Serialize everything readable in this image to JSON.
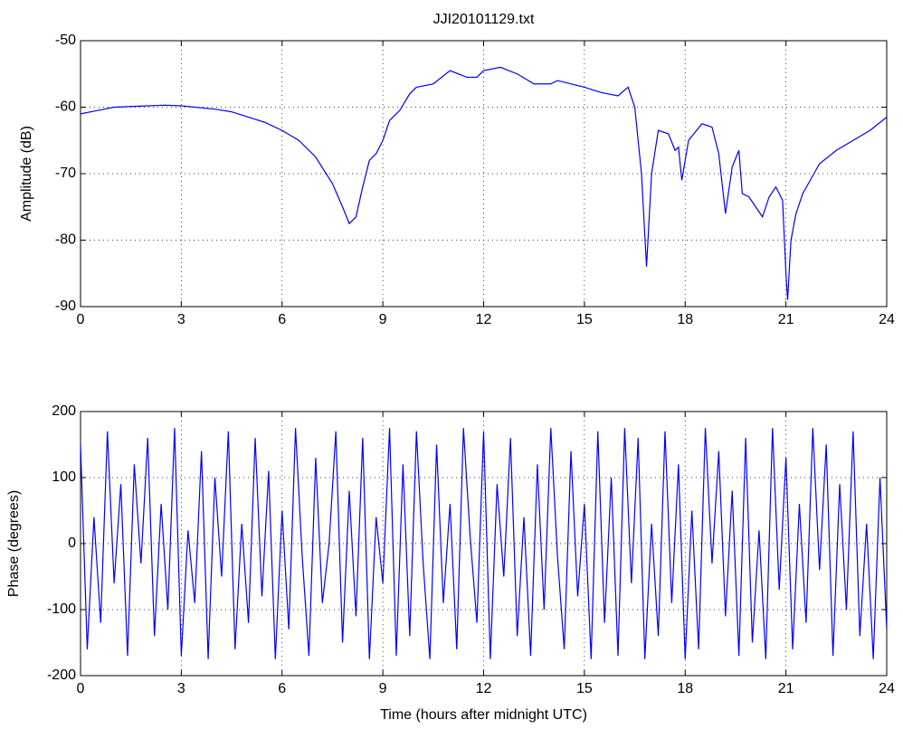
{
  "chart_data": [
    {
      "type": "line",
      "title": "JJI20101129.txt",
      "y_label": "Amplitude (dB)",
      "grid": true,
      "xlim": [
        0,
        24
      ],
      "xticks": [
        0,
        3,
        6,
        9,
        12,
        15,
        18,
        21,
        24
      ],
      "ylim": [
        -90,
        -50
      ],
      "yticks": [
        -90,
        -80,
        -70,
        -60,
        -50
      ],
      "series": [
        {
          "color": "#0000ff",
          "x": [
            0,
            0.5,
            1,
            2,
            2.5,
            3,
            4,
            4.5,
            5,
            5.5,
            6,
            6.5,
            7,
            7.5,
            7.8,
            8,
            8.2,
            8.4,
            8.6,
            8.8,
            9,
            9.2,
            9.5,
            9.8,
            10,
            10.5,
            11,
            11.5,
            11.8,
            12,
            12.5,
            13,
            13.5,
            14,
            14.2,
            15,
            15.5,
            16,
            16.3,
            16.5,
            16.7,
            16.85,
            17,
            17.2,
            17.5,
            17.7,
            17.8,
            17.9,
            18.1,
            18.5,
            18.8,
            19,
            19.2,
            19.4,
            19.6,
            19.7,
            19.9,
            20.1,
            20.3,
            20.5,
            20.7,
            20.9,
            21,
            21.05,
            21.15,
            21.3,
            21.5,
            22,
            22.5,
            23,
            23.5,
            24
          ],
          "values": [
            -61,
            -60.5,
            -60,
            -59.8,
            -59.7,
            -59.8,
            -60.3,
            -60.7,
            -61.5,
            -62.3,
            -63.5,
            -65,
            -67.5,
            -71.5,
            -75,
            -77.5,
            -76.5,
            -72,
            -68,
            -67,
            -65,
            -62,
            -60.5,
            -58,
            -57,
            -56.5,
            -54.5,
            -55.5,
            -55.5,
            -54.5,
            -54,
            -55,
            -56.5,
            -56.5,
            -56,
            -57,
            -57.8,
            -58.3,
            -57,
            -60,
            -70,
            -84,
            -70,
            -63.5,
            -64,
            -66.5,
            -66,
            -71,
            -65,
            -62.5,
            -63,
            -67,
            -76,
            -69,
            -66.5,
            -73,
            -73.5,
            -75,
            -76.5,
            -73.5,
            -72,
            -74,
            -85,
            -89,
            -80,
            -76,
            -73,
            -68.5,
            -66.5,
            -65,
            -63.5,
            -61.5
          ]
        }
      ]
    },
    {
      "type": "line",
      "x_label": "Time (hours after midnight UTC)",
      "y_label": "Phase (degrees)",
      "grid": true,
      "xlim": [
        0,
        24
      ],
      "xticks": [
        0,
        3,
        6,
        9,
        12,
        15,
        18,
        21,
        24
      ],
      "ylim": [
        -200,
        200
      ],
      "yticks": [
        -200,
        -100,
        0,
        100,
        200
      ],
      "series": [
        {
          "color": "#0000ff",
          "x": [
            0,
            0.2,
            0.4,
            0.6,
            0.8,
            1,
            1.2,
            1.4,
            1.6,
            1.8,
            2,
            2.2,
            2.4,
            2.6,
            2.8,
            3,
            3.2,
            3.4,
            3.6,
            3.8,
            4,
            4.2,
            4.4,
            4.6,
            4.8,
            5,
            5.2,
            5.4,
            5.6,
            5.8,
            6,
            6.2,
            6.4,
            6.6,
            6.8,
            7,
            7.2,
            7.4,
            7.6,
            7.8,
            8,
            8.2,
            8.4,
            8.6,
            8.8,
            9,
            9.2,
            9.4,
            9.6,
            9.8,
            10,
            10.2,
            10.4,
            10.6,
            10.8,
            11,
            11.2,
            11.4,
            11.6,
            11.8,
            12,
            12.2,
            12.4,
            12.6,
            12.8,
            13,
            13.2,
            13.4,
            13.6,
            13.8,
            14,
            14.2,
            14.4,
            14.6,
            14.8,
            15,
            15.2,
            15.4,
            15.6,
            15.8,
            16,
            16.2,
            16.4,
            16.6,
            16.8,
            17,
            17.2,
            17.4,
            17.6,
            17.8,
            18,
            18.2,
            18.4,
            18.6,
            18.8,
            19,
            19.2,
            19.4,
            19.6,
            19.8,
            20,
            20.2,
            20.4,
            20.6,
            20.8,
            21,
            21.2,
            21.4,
            21.6,
            21.8,
            22,
            22.2,
            22.4,
            22.6,
            22.8,
            23,
            23.2,
            23.4,
            23.6,
            23.8,
            24
          ],
          "values": [
            150,
            -160,
            40,
            -120,
            170,
            -60,
            90,
            -170,
            120,
            -30,
            160,
            -140,
            60,
            -100,
            175,
            -170,
            20,
            -90,
            140,
            -175,
            100,
            -50,
            170,
            -160,
            30,
            -120,
            160,
            -80,
            110,
            -175,
            50,
            -130,
            175,
            -20,
            -170,
            130,
            -90,
            0,
            170,
            -150,
            80,
            -110,
            160,
            -175,
            40,
            -60,
            175,
            -170,
            120,
            -140,
            170,
            -30,
            -175,
            150,
            -90,
            60,
            -160,
            175,
            10,
            -120,
            170,
            -175,
            90,
            -50,
            160,
            -140,
            40,
            -170,
            120,
            -100,
            175,
            -20,
            -160,
            140,
            -80,
            60,
            -175,
            170,
            -120,
            100,
            -170,
            175,
            -60,
            160,
            -175,
            30,
            -140,
            170,
            -90,
            120,
            -175,
            50,
            -160,
            175,
            -30,
            140,
            -110,
            80,
            -170,
            160,
            -150,
            20,
            -175,
            175,
            -70,
            130,
            -160,
            60,
            -120,
            175,
            -40,
            150,
            -170,
            90,
            -100,
            170,
            -140,
            30,
            -175,
            100,
            -130
          ]
        }
      ]
    }
  ]
}
